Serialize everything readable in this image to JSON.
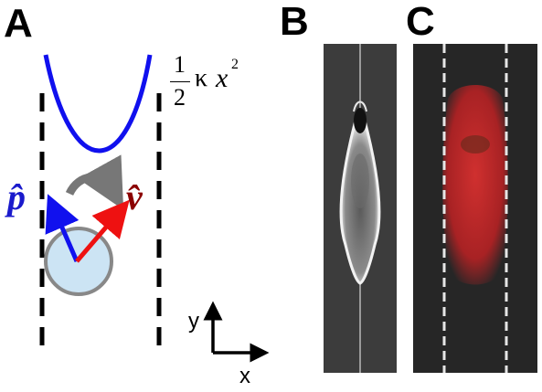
{
  "panels": {
    "a": {
      "label": "A"
    },
    "b": {
      "label": "B"
    },
    "c": {
      "label": "C"
    }
  },
  "formula": {
    "numerator": "1",
    "denominator": "2",
    "kappa": "κ",
    "variable": "x",
    "exponent": "2"
  },
  "vectors": {
    "p": {
      "label": "p̂",
      "color": "#1a1acc"
    },
    "v": {
      "label": "v̂",
      "color": "#8b0000"
    }
  },
  "axes": {
    "y_label": "y",
    "x_label": "x"
  },
  "colors": {
    "potential_curve": "#1010ee",
    "cell_fill": "#cce4f4",
    "cell_stroke": "#888888",
    "rotation_arrow": "#777777",
    "p_arrow": "#1111ee",
    "v_arrow": "#ee1111",
    "stained_cell": "#c0282a"
  }
}
